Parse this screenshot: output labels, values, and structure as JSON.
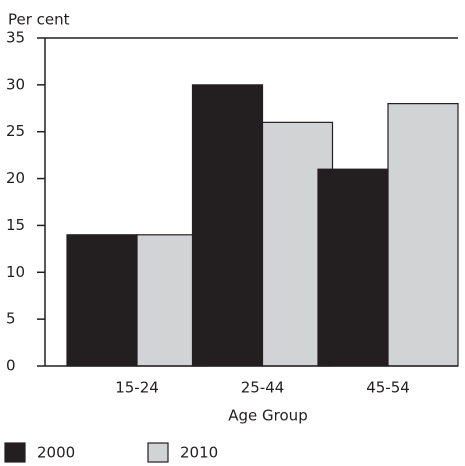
{
  "chart_data": {
    "type": "bar",
    "y_label": "Per cent",
    "x_label": "Age Group",
    "categories": [
      "15-24",
      "25-44",
      "45-54"
    ],
    "series": [
      {
        "name": "2000",
        "color": "#231f20",
        "values": [
          14,
          30,
          21
        ]
      },
      {
        "name": "2010",
        "color": "#d1d3d4",
        "values": [
          14,
          26,
          28
        ]
      }
    ],
    "ylim": [
      0,
      35
    ],
    "yticks": [
      0,
      5,
      10,
      15,
      20,
      25,
      30,
      35
    ],
    "grid": false
  }
}
